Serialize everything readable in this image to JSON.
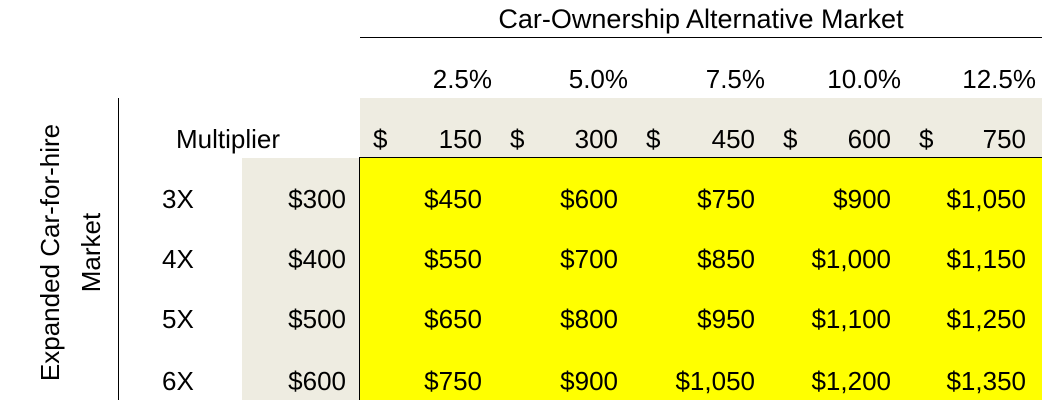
{
  "chart_data": {
    "type": "table",
    "title": "Car-Ownership Alternative Market",
    "row_axis_label": "Expanded Car-for-hire Market",
    "multiplier_label": "Multiplier",
    "currency_symbol": "$",
    "columns": [
      {
        "pct": "2.5%",
        "value": "150"
      },
      {
        "pct": "5.0%",
        "value": "300"
      },
      {
        "pct": "7.5%",
        "value": "450"
      },
      {
        "pct": "10.0%",
        "value": "600"
      },
      {
        "pct": "12.5%",
        "value": "750"
      }
    ],
    "rows": [
      {
        "mult": "3X",
        "base": "$300",
        "cells": [
          "$450",
          "$600",
          "$750",
          "$900",
          "$1,050"
        ]
      },
      {
        "mult": "4X",
        "base": "$400",
        "cells": [
          "$550",
          "$700",
          "$850",
          "$1,000",
          "$1,150"
        ]
      },
      {
        "mult": "5X",
        "base": "$500",
        "cells": [
          "$650",
          "$800",
          "$950",
          "$1,100",
          "$1,250"
        ]
      },
      {
        "mult": "6X",
        "base": "$600",
        "cells": [
          "$750",
          "$900",
          "$1,050",
          "$1,200",
          "$1,350"
        ]
      }
    ],
    "colors": {
      "highlight": "#ffff00",
      "header_fill": "#eeece1",
      "text": "#000000"
    }
  }
}
